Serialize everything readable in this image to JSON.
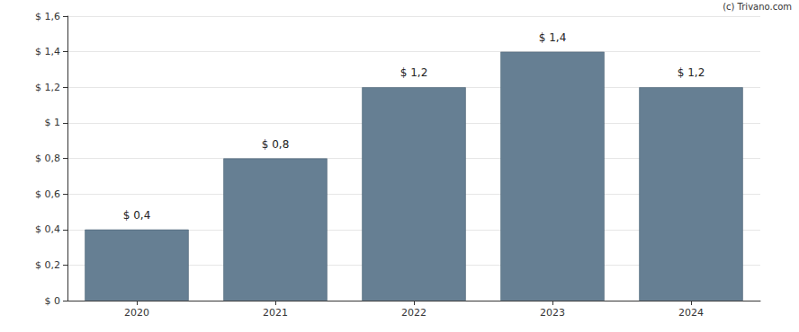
{
  "chart_data": {
    "type": "bar",
    "annotations": [
      "(c) Trivano.com"
    ],
    "categories": [
      "2020",
      "2021",
      "2022",
      "2023",
      "2024"
    ],
    "values": [
      0.4,
      0.8,
      1.2,
      1.4,
      1.2
    ],
    "value_labels": [
      "$ 0,4",
      "$ 0,8",
      "$ 1,2",
      "$ 1,4",
      "$ 1,2"
    ],
    "color": "#667f93",
    "ylim": [
      0,
      1.6
    ],
    "yticks": [
      {
        "value": 0,
        "label": "$ 0"
      },
      {
        "value": 0.2,
        "label": "$ 0,2"
      },
      {
        "value": 0.4,
        "label": "$ 0,4"
      },
      {
        "value": 0.6,
        "label": "$ 0,6"
      },
      {
        "value": 0.8,
        "label": "$ 0,8"
      },
      {
        "value": 1,
        "label": "$ 1"
      },
      {
        "value": 1.2,
        "label": "$ 1,2"
      },
      {
        "value": 1.4,
        "label": "$ 1,4"
      },
      {
        "value": 1.6,
        "label": "$ 1,6"
      }
    ],
    "grid": true,
    "data_labels": true
  }
}
